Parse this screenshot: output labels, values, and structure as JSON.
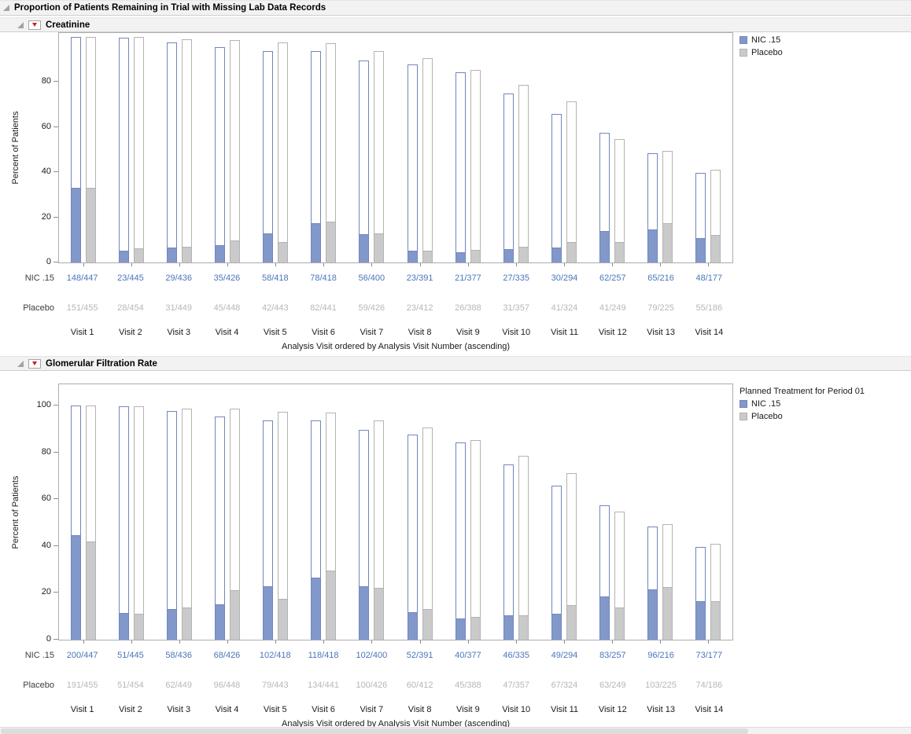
{
  "window": {
    "title": "Proportion of Patients Remaining in Trial with Missing Lab Data Records"
  },
  "colors": {
    "nic_fill": "#8298cb",
    "nic_border": "#7186bc",
    "nic_text": "#4a76b9",
    "placebo_fill": "#cacaca",
    "placebo_border": "#b3b3b3",
    "placebo_text": "#b7b7b7",
    "header_bg": "#f2f2f2",
    "menu_red": "#cf1d1d"
  },
  "panels": [
    {
      "title": "Creatinine",
      "legend": {
        "title": "",
        "entries": [
          "NIC .15",
          "Placebo"
        ]
      },
      "axis": {
        "ylabel": "Percent of Patients",
        "xlabel": "Analysis Visit ordered by Analysis Visit Number (ascending)",
        "yticks": [
          0,
          20,
          40,
          60,
          80
        ]
      },
      "chart_data": {
        "type": "bar",
        "title": "Creatinine",
        "xlabel": "Analysis Visit ordered by Analysis Visit Number (ascending)",
        "ylabel": "Percent of Patients",
        "ylim": [
          0,
          101.5
        ],
        "grid": false,
        "legend_position": "right",
        "categories": [
          "Visit 1",
          "Visit 2",
          "Visit 3",
          "Visit 4",
          "Visit 5",
          "Visit 6",
          "Visit 7",
          "Visit 8",
          "Visit 9",
          "Visit 10",
          "Visit 11",
          "Visit 12",
          "Visit 13",
          "Visit 14"
        ],
        "series": [
          {
            "name": "NIC .15",
            "total_patients": 447,
            "fractions": [
              "148/447",
              "23/445",
              "29/436",
              "35/426",
              "58/418",
              "78/418",
              "56/400",
              "23/391",
              "21/377",
              "27/335",
              "30/294",
              "62/257",
              "65/216",
              "48/177"
            ],
            "remaining_pct": [
              100,
              99.6,
              97.5,
              95.3,
              93.5,
              93.5,
              89.5,
              87.5,
              84.3,
              74.9,
              65.8,
              57.5,
              48.3,
              39.6
            ],
            "missing_pct": [
              33.1,
              5.1,
              6.5,
              7.8,
              13.0,
              17.4,
              12.5,
              5.1,
              4.7,
              6.0,
              6.7,
              13.9,
              14.5,
              10.7
            ]
          },
          {
            "name": "Placebo",
            "total_patients": 455,
            "fractions": [
              "151/455",
              "28/454",
              "31/449",
              "45/448",
              "42/443",
              "82/441",
              "59/426",
              "23/412",
              "26/388",
              "31/357",
              "41/324",
              "41/249",
              "79/225",
              "55/186"
            ],
            "remaining_pct": [
              100,
              99.8,
              98.7,
              98.5,
              97.4,
              96.9,
              93.6,
              90.5,
              85.3,
              78.5,
              71.2,
              54.7,
              49.5,
              40.9
            ],
            "missing_pct": [
              33.2,
              6.2,
              6.8,
              9.9,
              9.2,
              18.0,
              13.0,
              5.1,
              5.7,
              6.8,
              9.0,
              9.0,
              17.4,
              12.1
            ]
          }
        ]
      }
    },
    {
      "title": "Glomerular Filtration Rate",
      "legend": {
        "title": "Planned Treatment for Period 01",
        "entries": [
          "NIC .15",
          "Placebo"
        ]
      },
      "axis": {
        "ylabel": "Percent of Patients",
        "xlabel": "Analysis Visit ordered by Analysis Visit Number (ascending)",
        "yticks": [
          0,
          20,
          40,
          60,
          80,
          100
        ]
      },
      "chart_data": {
        "type": "bar",
        "title": "Glomerular Filtration Rate",
        "xlabel": "Analysis Visit ordered by Analysis Visit Number (ascending)",
        "ylabel": "Percent of Patients",
        "ylim": [
          0,
          109
        ],
        "grid": false,
        "legend_position": "right",
        "categories": [
          "Visit 1",
          "Visit 2",
          "Visit 3",
          "Visit 4",
          "Visit 5",
          "Visit 6",
          "Visit 7",
          "Visit 8",
          "Visit 9",
          "Visit 10",
          "Visit 11",
          "Visit 12",
          "Visit 13",
          "Visit 14"
        ],
        "series": [
          {
            "name": "NIC .15",
            "total_patients": 447,
            "fractions": [
              "200/447",
              "51/445",
              "58/436",
              "68/426",
              "102/418",
              "118/418",
              "102/400",
              "52/391",
              "40/377",
              "46/335",
              "49/294",
              "83/257",
              "96/216",
              "73/177"
            ],
            "remaining_pct": [
              100,
              99.6,
              97.5,
              95.3,
              93.5,
              93.5,
              89.5,
              87.5,
              84.3,
              74.9,
              65.8,
              57.5,
              48.3,
              39.6
            ],
            "missing_pct": [
              44.7,
              11.4,
              13.0,
              15.2,
              22.8,
              26.4,
              22.8,
              11.6,
              8.9,
              10.3,
              11.0,
              18.6,
              21.5,
              16.3
            ]
          },
          {
            "name": "Placebo",
            "total_patients": 455,
            "fractions": [
              "191/455",
              "51/454",
              "62/449",
              "96/448",
              "79/443",
              "134/441",
              "100/426",
              "60/412",
              "45/388",
              "47/357",
              "67/324",
              "63/249",
              "103/225",
              "74/186"
            ],
            "remaining_pct": [
              100,
              99.8,
              98.7,
              98.5,
              97.4,
              96.9,
              93.6,
              90.5,
              85.3,
              78.5,
              71.2,
              54.7,
              49.5,
              40.9
            ],
            "missing_pct": [
              42.0,
              11.2,
              13.6,
              21.1,
              17.4,
              29.5,
              22.0,
              13.2,
              9.9,
              10.3,
              14.7,
              13.8,
              22.6,
              16.3
            ]
          }
        ]
      }
    }
  ]
}
